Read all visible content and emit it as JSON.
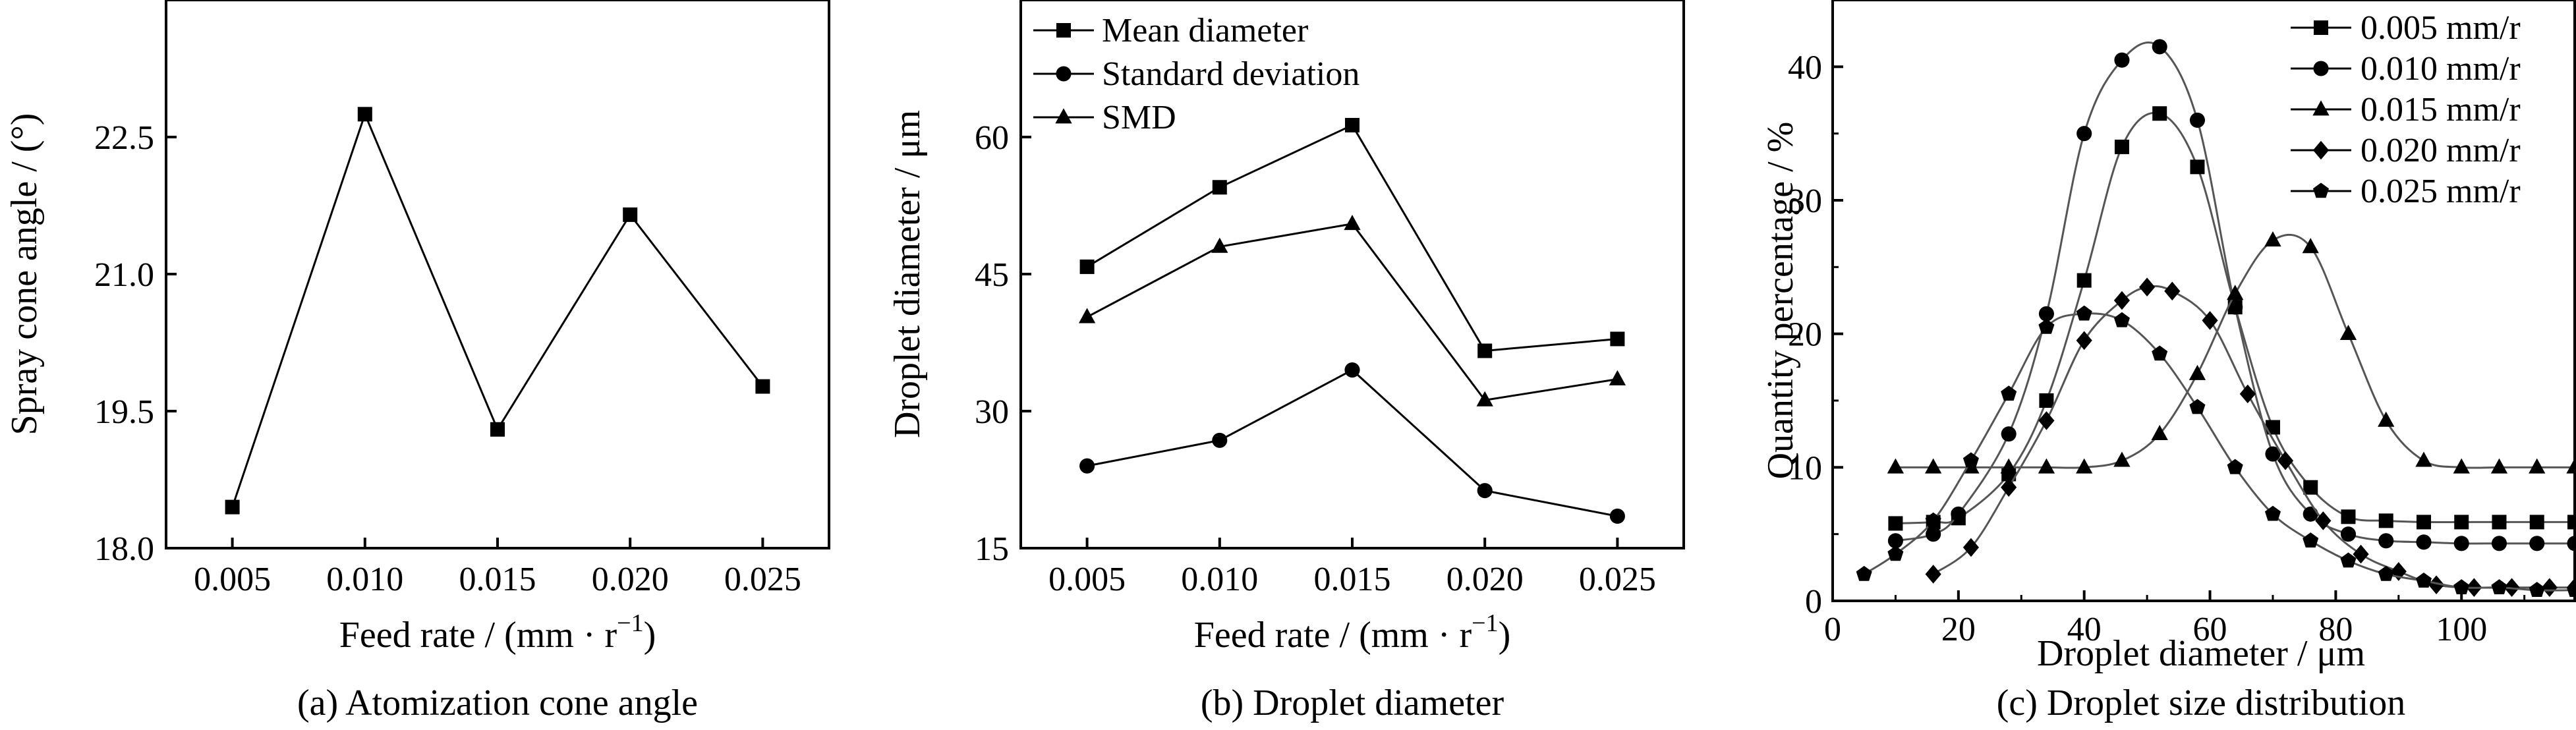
{
  "chart_data": [
    {
      "type": "line",
      "caption": "(a) Atomization cone angle",
      "xlabel_main": "Feed rate / (mm · r",
      "xlabel_sup": "−1",
      "xlabel_close": ")",
      "ylabel": "Spray cone angle / (°)",
      "categories": [
        "0.005",
        "0.010",
        "0.015",
        "0.020",
        "0.025"
      ],
      "yticks": [
        "18.0",
        "19.5",
        "21.0",
        "22.5"
      ],
      "ylim": [
        18.0,
        24.0
      ],
      "series": [
        {
          "values": [
            18.45,
            22.75,
            19.3,
            21.65,
            19.77
          ],
          "marker": "square"
        }
      ],
      "grid": false
    },
    {
      "type": "line",
      "caption": "(b) Droplet diameter",
      "xlabel_main": "Feed rate / (mm · r",
      "xlabel_sup": "−1",
      "xlabel_close": ")",
      "ylabel": "Droplet diameter / μm",
      "categories": [
        "0.005",
        "0.010",
        "0.015",
        "0.020",
        "0.025"
      ],
      "yticks": [
        "15",
        "30",
        "45",
        "60"
      ],
      "ylim": [
        15,
        75
      ],
      "legend_position": "top-left",
      "series": [
        {
          "name": "Mean diameter",
          "values": [
            45.8,
            54.5,
            61.3,
            36.6,
            37.9
          ],
          "marker": "square"
        },
        {
          "name": "Standard deviation",
          "values": [
            24.0,
            26.8,
            34.5,
            21.3,
            18.5
          ],
          "marker": "circle"
        },
        {
          "name": "SMD",
          "values": [
            40.3,
            48.0,
            50.5,
            31.2,
            33.5
          ],
          "marker": "triangle"
        }
      ],
      "grid": false
    },
    {
      "type": "line",
      "caption": "(c) Droplet size distribution",
      "xlabel": "Droplet diameter / μm",
      "ylabel": "Quantity percentage / %",
      "xticks": [
        "0",
        "20",
        "40",
        "60",
        "80",
        "100"
      ],
      "yticks": [
        "0",
        "10",
        "20",
        "30",
        "40"
      ],
      "xlim": [
        0,
        118
      ],
      "ylim": [
        0,
        45
      ],
      "legend_position": "top-right",
      "series": [
        {
          "name": "0.005 mm/r",
          "marker": "square",
          "x": [
            10,
            16,
            20,
            28,
            34,
            40,
            46,
            52,
            58,
            64,
            70,
            76,
            82,
            88,
            94,
            100,
            106,
            112,
            118
          ],
          "y": [
            5.8,
            5.9,
            6.2,
            9.5,
            15,
            24,
            34,
            36.5,
            32.5,
            22,
            13,
            8.5,
            6.3,
            6.0,
            5.9,
            5.9,
            5.9,
            5.9,
            5.9
          ]
        },
        {
          "name": "0.010 mm/r",
          "marker": "circle",
          "x": [
            10,
            16,
            20,
            28,
            34,
            40,
            46,
            52,
            58,
            64,
            70,
            76,
            82,
            88,
            94,
            100,
            106,
            112,
            118
          ],
          "y": [
            4.5,
            5.0,
            6.5,
            12.5,
            21.5,
            35,
            40.5,
            41.5,
            36,
            22,
            11,
            6.5,
            5.0,
            4.5,
            4.4,
            4.3,
            4.3,
            4.3,
            4.3
          ]
        },
        {
          "name": "0.015 mm/r",
          "marker": "triangle",
          "x": [
            10,
            16,
            22,
            28,
            34,
            40,
            46,
            52,
            58,
            64,
            70,
            76,
            82,
            88,
            94,
            100,
            106,
            112,
            118
          ],
          "y": [
            10,
            10,
            10,
            10,
            10,
            10,
            10.5,
            12.5,
            17,
            23,
            27,
            26.5,
            20,
            13.5,
            10.5,
            10,
            10,
            10,
            10
          ]
        },
        {
          "name": "0.020 mm/r",
          "marker": "diamond",
          "x": [
            16,
            22,
            28,
            34,
            40,
            46,
            50,
            54,
            60,
            66,
            72,
            78,
            84,
            90,
            96,
            102,
            108,
            114,
            118
          ],
          "y": [
            2.0,
            4.0,
            8.5,
            13.5,
            19.5,
            22.5,
            23.5,
            23.2,
            21,
            15.5,
            10.5,
            6.0,
            3.5,
            2.2,
            1.2,
            1.0,
            1.0,
            1.0,
            1.0
          ]
        },
        {
          "name": "0.025 mm/r",
          "marker": "pentagon",
          "x": [
            5,
            10,
            16,
            22,
            28,
            34,
            40,
            46,
            52,
            58,
            64,
            70,
            76,
            82,
            88,
            94,
            100,
            106,
            112,
            118
          ],
          "y": [
            2.0,
            3.5,
            6.0,
            10.5,
            15.5,
            20.5,
            21.5,
            21.0,
            18.5,
            14.5,
            10.0,
            6.5,
            4.5,
            3.0,
            2.0,
            1.5,
            1.0,
            1.0,
            0.8,
            0.8
          ]
        }
      ],
      "grid": false
    }
  ]
}
